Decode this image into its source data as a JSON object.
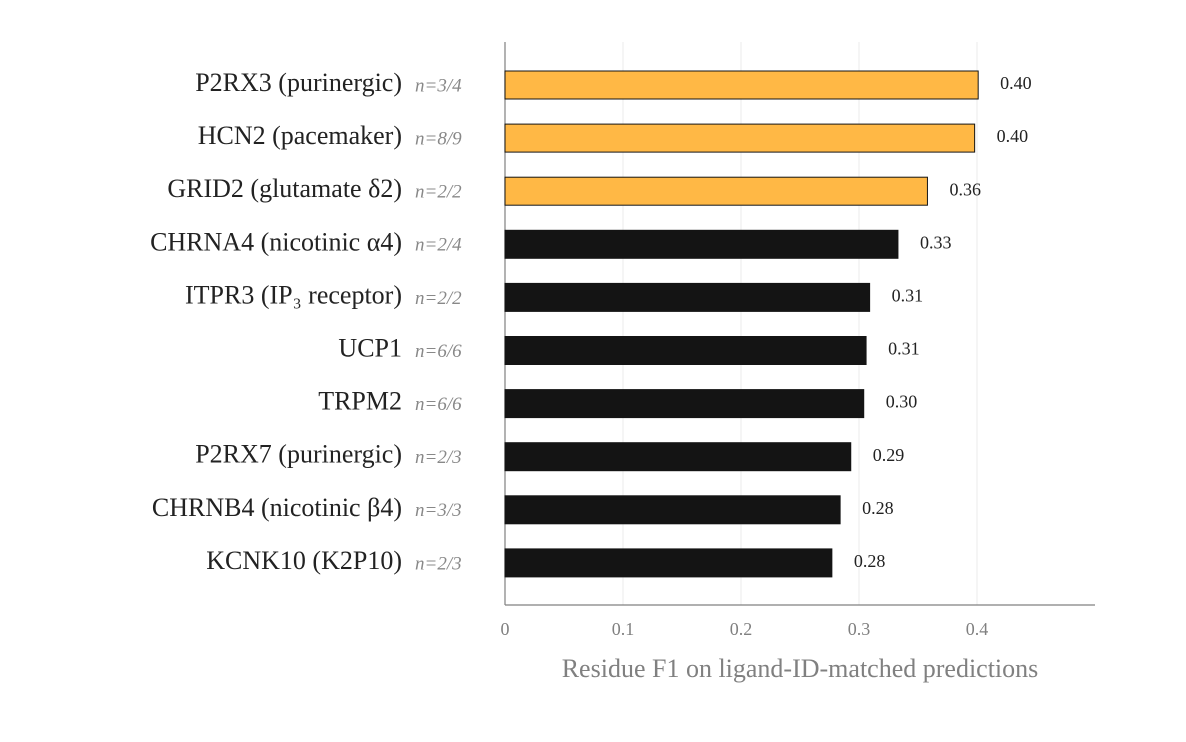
{
  "chart_data": {
    "type": "hbar",
    "categories": [
      "P2RX3 (purinergic)",
      "HCN2 (pacemaker)",
      "GRID2 (glutamate δ2)",
      "CHRNA4 (nicotinic α4)",
      "ITPR3 (IP₃ receptor)",
      "UCP1",
      "TRPM2",
      "P2RX7 (purinergic)",
      "CHRNB4 (nicotinic β4)",
      "KCNK10 (K2P10)"
    ],
    "annotations": [
      "n=3/4",
      "n=8/9",
      "n=2/2",
      "n=2/4",
      "n=2/2",
      "n=6/6",
      "n=6/6",
      "n=2/3",
      "n=3/3",
      "n=2/3"
    ],
    "values": [
      0.401,
      0.398,
      0.358,
      0.333,
      0.309,
      0.306,
      0.304,
      0.293,
      0.284,
      0.277
    ],
    "value_labels": [
      "0.40",
      "0.40",
      "0.36",
      "0.33",
      "0.31",
      "0.31",
      "0.30",
      "0.29",
      "0.28",
      "0.28"
    ],
    "colors": [
      "#ffb845",
      "#ffb845",
      "#ffb845",
      "#141414",
      "#141414",
      "#141414",
      "#141414",
      "#141414",
      "#141414",
      "#141414"
    ],
    "xlabel": "Residue F1 on ligand-ID-matched predictions",
    "xlim": [
      0,
      0.5
    ],
    "xticks": [
      0,
      0.1,
      0.2,
      0.3,
      0.4
    ],
    "grid": true
  }
}
